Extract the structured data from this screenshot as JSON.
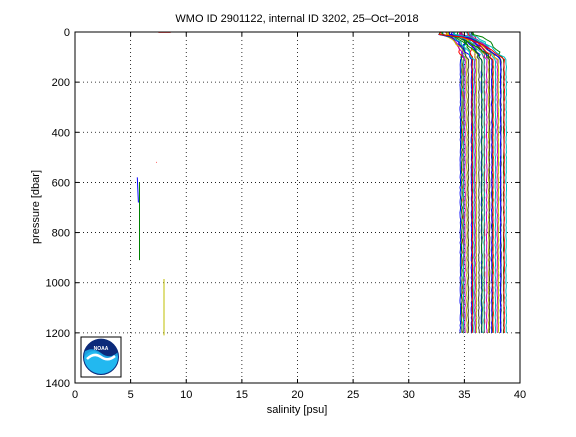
{
  "chart_data": {
    "type": "line",
    "title": "WMO ID 2901122, internal ID 3202, 25–Oct–2018",
    "xlabel": "salinity [psu]",
    "ylabel": "pressure [dbar]",
    "xlim": [
      0,
      40
    ],
    "ylim": [
      1400,
      0
    ],
    "y_inverted": true,
    "xticks": [
      0,
      5,
      10,
      15,
      20,
      25,
      30,
      35,
      40
    ],
    "yticks": [
      0,
      200,
      400,
      600,
      800,
      1000,
      1200,
      1400
    ],
    "grid": true,
    "logo": "NOAA",
    "series_colors": [
      "#0000ff",
      "#008000",
      "#ff0000",
      "#00bfbf",
      "#bf00bf",
      "#bfbf00",
      "#404040"
    ],
    "profile_count": 32,
    "profile_salinity_range": [
      34.6,
      38.7
    ],
    "profile_pressure_max": 1200,
    "stray_segments": [
      {
        "color": "#0000ff",
        "points": [
          [
            5.6,
            580
          ],
          [
            5.7,
            680
          ]
        ]
      },
      {
        "color": "#008000",
        "points": [
          [
            5.8,
            600
          ],
          [
            5.8,
            910
          ]
        ]
      },
      {
        "color": "#bfbf00",
        "points": [
          [
            8.0,
            985
          ],
          [
            8.0,
            1210
          ]
        ]
      },
      {
        "color": "#ff0000",
        "points": [
          [
            7.3,
            520
          ],
          [
            7.35,
            520
          ]
        ]
      },
      {
        "color": "#ff0000",
        "points": [
          [
            7.5,
            1
          ],
          [
            8.6,
            1
          ]
        ]
      }
    ]
  }
}
